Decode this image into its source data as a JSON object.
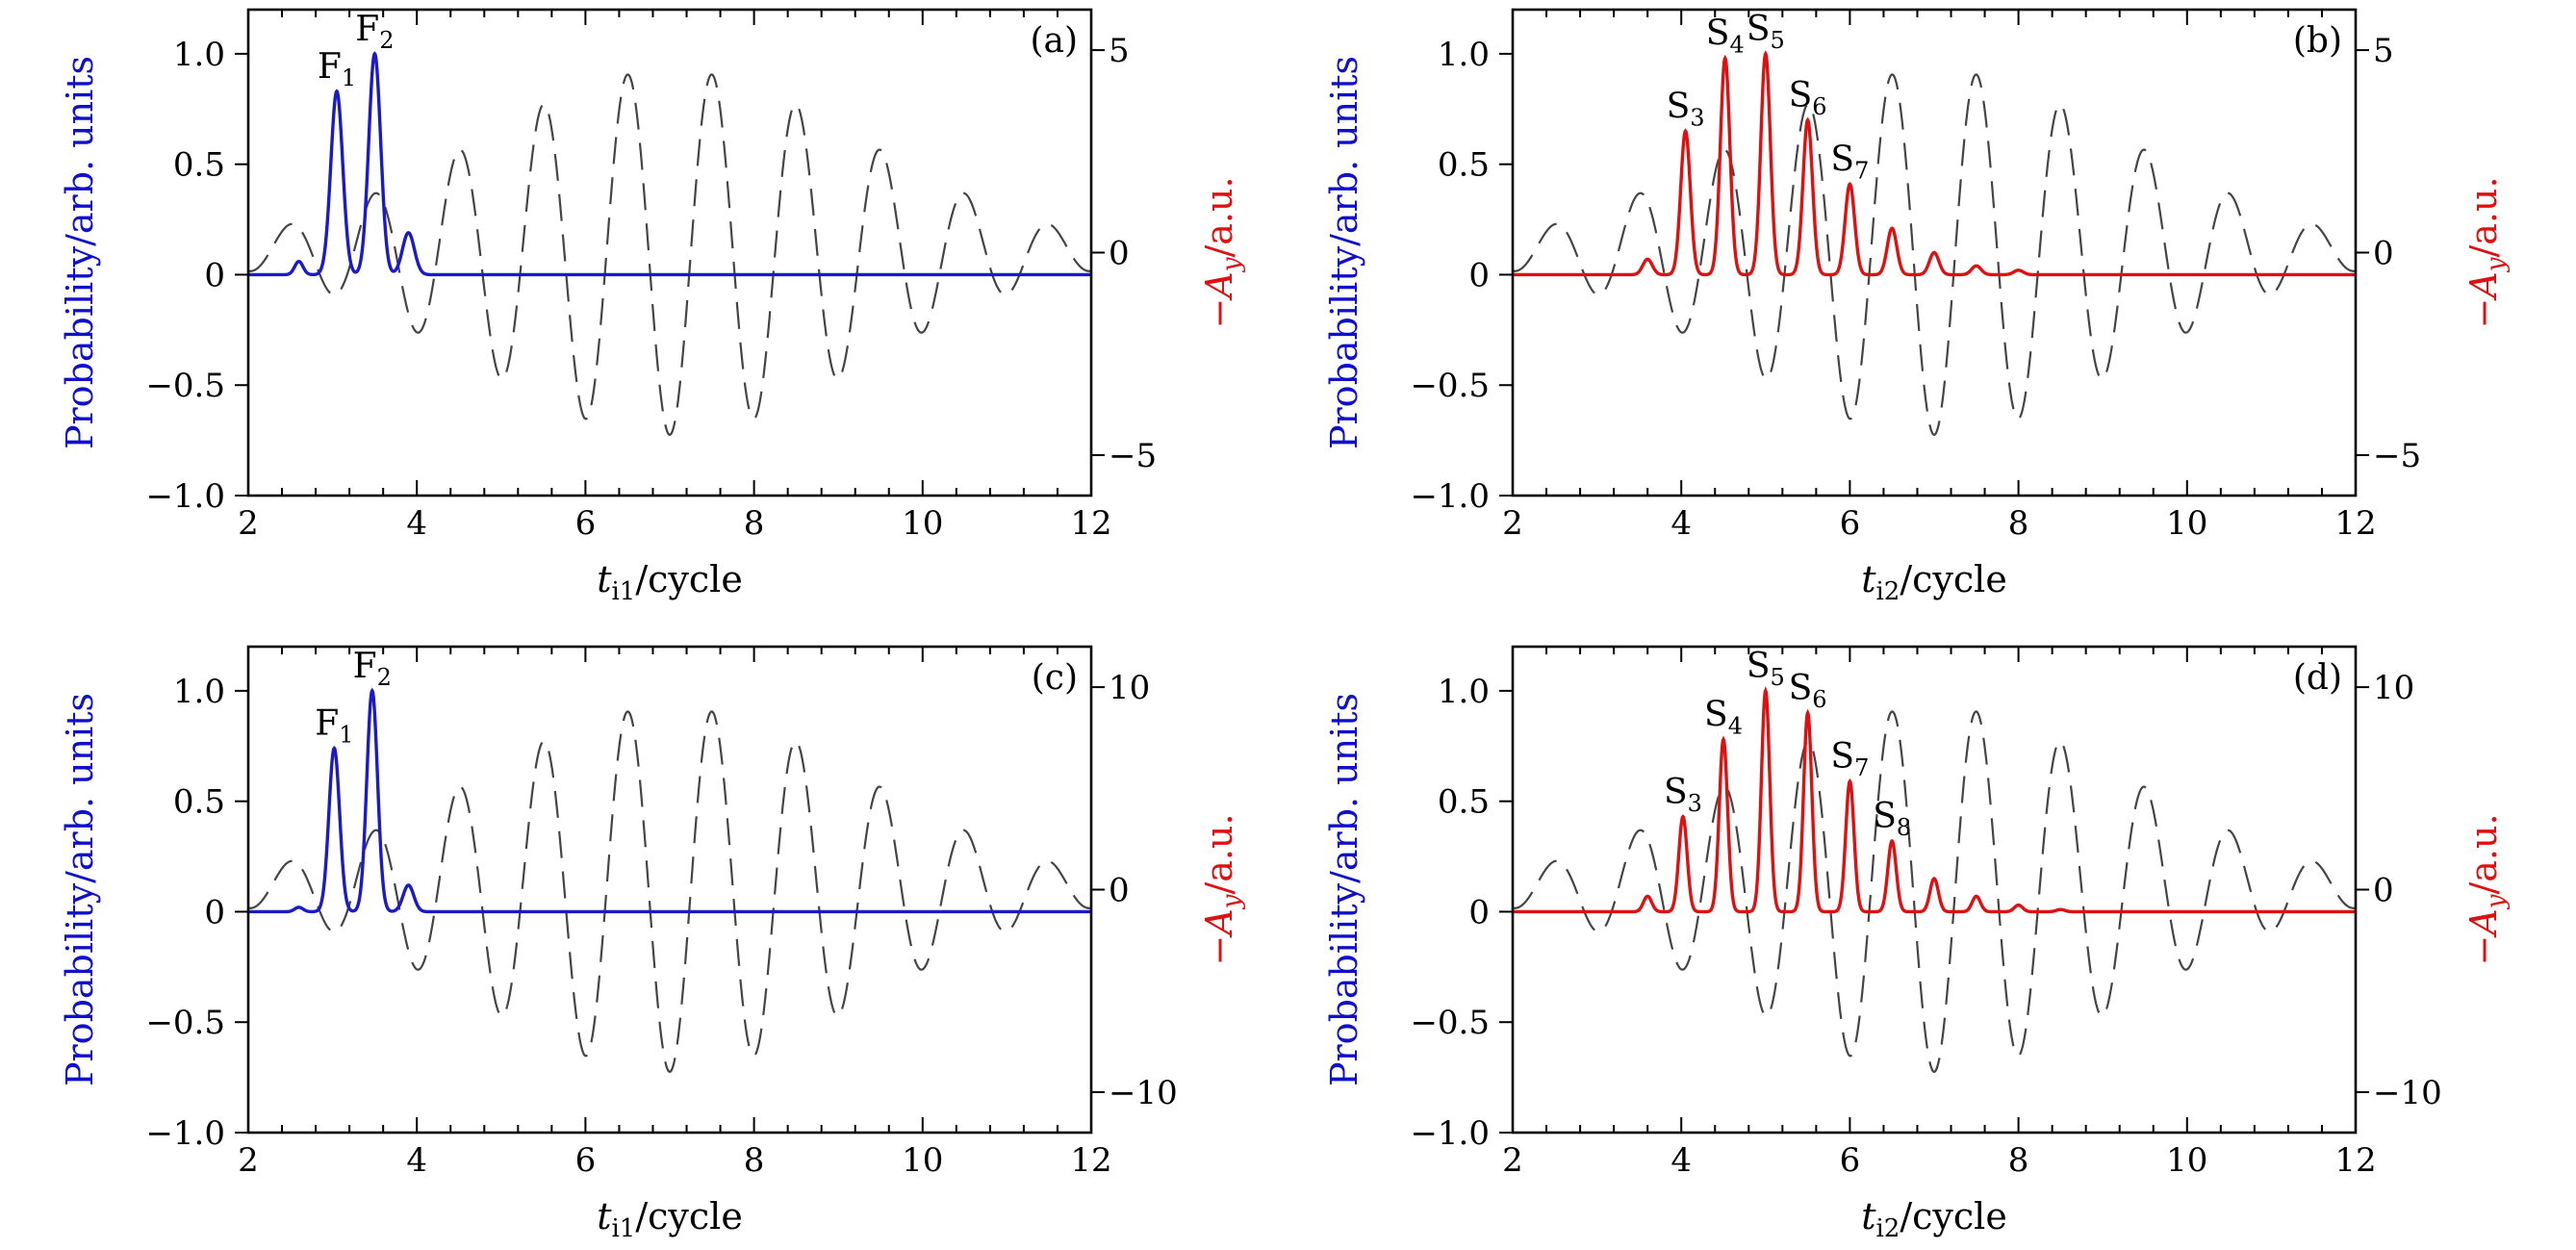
{
  "chart_data": [
    {
      "type": "line",
      "panel": "(a)",
      "xlabel_main": "t",
      "xlabel_sub": "i1",
      "xlabel_rest": "/cycle",
      "ylabel": "Probability/arb. units",
      "ylabel2_parts": [
        "−A",
        "y",
        "/a.u."
      ],
      "xlim": [
        2,
        12
      ],
      "ylim": [
        -1.0,
        1.2
      ],
      "y2lim": [
        -6,
        6
      ],
      "xticks": [
        "2",
        "4",
        "6",
        "8",
        "10",
        "12"
      ],
      "yticks": [
        "−1.0",
        "−0.5",
        "0",
        "0.5",
        "1.0"
      ],
      "y2ticks": [
        "−5",
        "0",
        "5"
      ],
      "series": [
        {
          "name": "Probability",
          "color": "#1a1acc",
          "style": "solid",
          "peaks": [
            [
              2.6,
              0.06,
              0.07
            ],
            [
              3.05,
              0.83,
              0.1
            ],
            [
              3.5,
              1.0,
              0.1
            ],
            [
              3.9,
              0.19,
              0.1
            ]
          ]
        },
        {
          "name": "−A_y",
          "color": "#444444",
          "style": "dashed",
          "axis": "right",
          "field": {
            "center": 7.0,
            "width": 3.3,
            "amp": 4.5
          }
        }
      ],
      "annotations": [
        {
          "base": "F",
          "sub": "1",
          "x": 3.05,
          "y": 0.83
        },
        {
          "base": "F",
          "sub": "2",
          "x": 3.5,
          "y": 1.0
        }
      ]
    },
    {
      "type": "line",
      "panel": "(b)",
      "xlabel_main": "t",
      "xlabel_sub": "i2",
      "xlabel_rest": "/cycle",
      "ylabel": "Probability/arb. units",
      "ylabel2_parts": [
        "−A",
        "y",
        "/a.u."
      ],
      "xlim": [
        2,
        12
      ],
      "ylim": [
        -1.0,
        1.2
      ],
      "y2lim": [
        -6,
        6
      ],
      "xticks": [
        "2",
        "4",
        "6",
        "8",
        "10",
        "12"
      ],
      "yticks": [
        "−1.0",
        "−0.5",
        "0",
        "0.5",
        "1.0"
      ],
      "y2ticks": [
        "−5",
        "0",
        "5"
      ],
      "series": [
        {
          "name": "Probability",
          "color": "#e01010",
          "style": "solid",
          "peaks": [
            [
              3.6,
              0.07,
              0.08
            ],
            [
              4.05,
              0.65,
              0.08
            ],
            [
              4.52,
              0.98,
              0.08
            ],
            [
              5.0,
              1.0,
              0.08
            ],
            [
              5.5,
              0.7,
              0.08
            ],
            [
              6.0,
              0.41,
              0.08
            ],
            [
              6.5,
              0.21,
              0.08
            ],
            [
              7.0,
              0.1,
              0.08
            ],
            [
              7.5,
              0.04,
              0.08
            ],
            [
              8.0,
              0.02,
              0.08
            ]
          ]
        },
        {
          "name": "−A_y",
          "color": "#444444",
          "style": "dashed",
          "axis": "right",
          "field": {
            "center": 7.0,
            "width": 3.3,
            "amp": 4.5
          }
        }
      ],
      "annotations": [
        {
          "base": "S",
          "sub": "3",
          "x": 4.05,
          "y": 0.65
        },
        {
          "base": "S",
          "sub": "4",
          "x": 4.52,
          "y": 0.98
        },
        {
          "base": "S",
          "sub": "5",
          "x": 5.0,
          "y": 1.0
        },
        {
          "base": "S",
          "sub": "6",
          "x": 5.5,
          "y": 0.7
        },
        {
          "base": "S",
          "sub": "7",
          "x": 6.0,
          "y": 0.41
        }
      ]
    },
    {
      "type": "line",
      "panel": "(c)",
      "xlabel_main": "t",
      "xlabel_sub": "i1",
      "xlabel_rest": "/cycle",
      "ylabel": "Probability/arb. units",
      "ylabel2_parts": [
        "−A",
        "y",
        "/a.u."
      ],
      "xlim": [
        2,
        12
      ],
      "ylim": [
        -1.0,
        1.2
      ],
      "y2lim": [
        -12,
        12
      ],
      "xticks": [
        "2",
        "4",
        "6",
        "8",
        "10",
        "12"
      ],
      "yticks": [
        "−1.0",
        "−0.5",
        "0",
        "0.5",
        "1.0"
      ],
      "y2ticks": [
        "−10",
        "0",
        "10"
      ],
      "series": [
        {
          "name": "Probability",
          "color": "#1a1acc",
          "style": "solid",
          "peaks": [
            [
              2.6,
              0.02,
              0.07
            ],
            [
              3.02,
              0.74,
              0.09
            ],
            [
              3.47,
              1.0,
              0.09
            ],
            [
              3.9,
              0.12,
              0.09
            ]
          ]
        },
        {
          "name": "−A_y",
          "color": "#444444",
          "style": "dashed",
          "axis": "right",
          "field": {
            "center": 7.0,
            "width": 3.3,
            "amp": 9.0
          }
        }
      ],
      "annotations": [
        {
          "base": "F",
          "sub": "1",
          "x": 3.02,
          "y": 0.74
        },
        {
          "base": "F",
          "sub": "2",
          "x": 3.47,
          "y": 1.0
        }
      ]
    },
    {
      "type": "line",
      "panel": "(d)",
      "xlabel_main": "t",
      "xlabel_sub": "i2",
      "xlabel_rest": "/cycle",
      "ylabel": "Probability/arb. units",
      "ylabel2_parts": [
        "−A",
        "y",
        "/a.u."
      ],
      "xlim": [
        2,
        12
      ],
      "ylim": [
        -1.0,
        1.2
      ],
      "y2lim": [
        -12,
        12
      ],
      "xticks": [
        "2",
        "4",
        "6",
        "8",
        "10",
        "12"
      ],
      "yticks": [
        "−1.0",
        "−0.5",
        "0",
        "0.5",
        "1.0"
      ],
      "y2ticks": [
        "−10",
        "0",
        "10"
      ],
      "series": [
        {
          "name": "Probability",
          "color": "#e01010",
          "style": "solid",
          "peaks": [
            [
              3.6,
              0.07,
              0.07
            ],
            [
              4.02,
              0.43,
              0.07
            ],
            [
              4.5,
              0.78,
              0.07
            ],
            [
              5.0,
              1.0,
              0.07
            ],
            [
              5.5,
              0.9,
              0.07
            ],
            [
              6.0,
              0.59,
              0.07
            ],
            [
              6.5,
              0.32,
              0.07
            ],
            [
              7.0,
              0.15,
              0.07
            ],
            [
              7.5,
              0.07,
              0.07
            ],
            [
              8.0,
              0.03,
              0.07
            ],
            [
              8.5,
              0.01,
              0.07
            ]
          ]
        },
        {
          "name": "−A_y",
          "color": "#444444",
          "style": "dashed",
          "axis": "right",
          "field": {
            "center": 7.0,
            "width": 3.3,
            "amp": 9.0
          }
        }
      ],
      "annotations": [
        {
          "base": "S",
          "sub": "3",
          "x": 4.02,
          "y": 0.43
        },
        {
          "base": "S",
          "sub": "4",
          "x": 4.5,
          "y": 0.78
        },
        {
          "base": "S",
          "sub": "5",
          "x": 5.0,
          "y": 1.0
        },
        {
          "base": "S",
          "sub": "6",
          "x": 5.5,
          "y": 0.9
        },
        {
          "base": "S",
          "sub": "7",
          "x": 6.0,
          "y": 0.59
        },
        {
          "base": "S",
          "sub": "8",
          "x": 6.5,
          "y": 0.32
        }
      ]
    }
  ]
}
